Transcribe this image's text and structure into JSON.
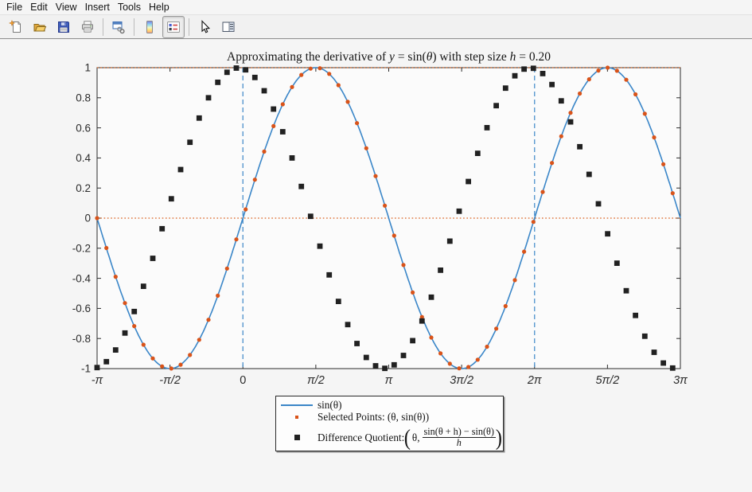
{
  "window": {
    "background": "#f5f5f5",
    "chrome_background": "#f1f1f1"
  },
  "menu": {
    "items": [
      {
        "label": "File"
      },
      {
        "label": "Edit"
      },
      {
        "label": "View"
      },
      {
        "label": "Insert"
      },
      {
        "label": "Tools"
      },
      {
        "label": "Help"
      }
    ]
  },
  "toolbar": {
    "buttons": [
      {
        "icon": "new-figure-icon",
        "pressed": false
      },
      {
        "icon": "open-figure-icon",
        "pressed": false
      },
      {
        "icon": "save-figure-icon",
        "pressed": false
      },
      {
        "icon": "print-figure-icon",
        "pressed": false
      },
      {
        "icon": "link-plot-icon",
        "pressed": false
      },
      {
        "icon": "insert-colorbar-icon",
        "pressed": false
      },
      {
        "icon": "insert-legend-icon",
        "pressed": true
      },
      {
        "icon": "edit-plot-pointer-icon",
        "pressed": false
      },
      {
        "icon": "plot-browser-icon",
        "pressed": false
      }
    ]
  },
  "title": {
    "parts": {
      "p0": "Approximating the derivative of ",
      "p1": "y",
      "p2": " = sin(",
      "p3": "θ",
      "p4": ") with step size ",
      "p5": "h",
      "p6": " = 0.20"
    }
  },
  "legend": {
    "rows": [
      {
        "marker": "line-sample",
        "label": "sin(θ)"
      },
      {
        "marker": "dot-marker",
        "label": "Selected Points: (θ, sin(θ))"
      },
      {
        "marker": "square-marker",
        "prefix": "Difference Quotient: ",
        "open_paren": "(",
        "arg": "θ,",
        "numerator": "sin(θ + h) − sin(θ)",
        "denominator": "h",
        "close_paren": ")"
      }
    ]
  },
  "chart_data": {
    "type": "line",
    "title": "Approximating the derivative of y = sin(θ) with step size h = 0.20",
    "xlabel": "",
    "ylabel": "",
    "xlim_in_pi": [
      -1,
      3
    ],
    "ylim": [
      -1,
      1
    ],
    "grid": false,
    "legend_position": "below-plot",
    "plot_background": "#fbfbfb",
    "axes_color": "#2b2b2b",
    "x_ticks": {
      "values_in_pi": [
        -1,
        -0.5,
        0,
        0.5,
        1,
        1.5,
        2,
        2.5,
        3
      ],
      "labels": [
        "-π",
        "-π/2",
        "0",
        "π/2",
        "π",
        "3π/2",
        "2π",
        "5π/2",
        "3π"
      ]
    },
    "y_ticks": {
      "values": [
        -1,
        -0.8,
        -0.6,
        -0.4,
        -0.2,
        0,
        0.2,
        0.4,
        0.6,
        0.8,
        1
      ],
      "labels": [
        "-1",
        "-0.8",
        "-0.6",
        "-0.4",
        "-0.2",
        "0",
        "0.2",
        "0.4",
        "0.6",
        "0.8",
        "1"
      ]
    },
    "h_step": 0.2,
    "sampling": {
      "theta_start_in_pi": -1,
      "theta_step": 0.2,
      "point_count": 63
    },
    "series": [
      {
        "name": "sin(θ)",
        "type": "line",
        "formula": "sin(theta)",
        "color": "#3a86c8",
        "line_width": 1.6
      },
      {
        "name": "Selected Points: (θ, sin(θ))",
        "type": "scatter",
        "formula": "sin(theta)",
        "marker": "filled-circle",
        "size": 5,
        "color": "#d95319"
      },
      {
        "name": "Difference Quotient: (θ, (sin(θ+h) − sin(θ))/h)",
        "type": "scatter",
        "formula": "(sin(theta+h)-sin(theta))/h",
        "marker": "filled-square",
        "size": 7,
        "color": "#212121"
      }
    ],
    "reference_lines": [
      {
        "orientation": "horizontal",
        "value": 1,
        "style": "dotted",
        "color": "#d95e19"
      },
      {
        "orientation": "horizontal",
        "value": 0,
        "style": "dotted",
        "color": "#d95e19"
      },
      {
        "orientation": "vertical",
        "value_in_pi": 0,
        "style": "dashed",
        "color": "#4a90cc"
      },
      {
        "orientation": "vertical",
        "value_in_pi": 2,
        "style": "dashed",
        "color": "#4a90cc"
      }
    ]
  }
}
